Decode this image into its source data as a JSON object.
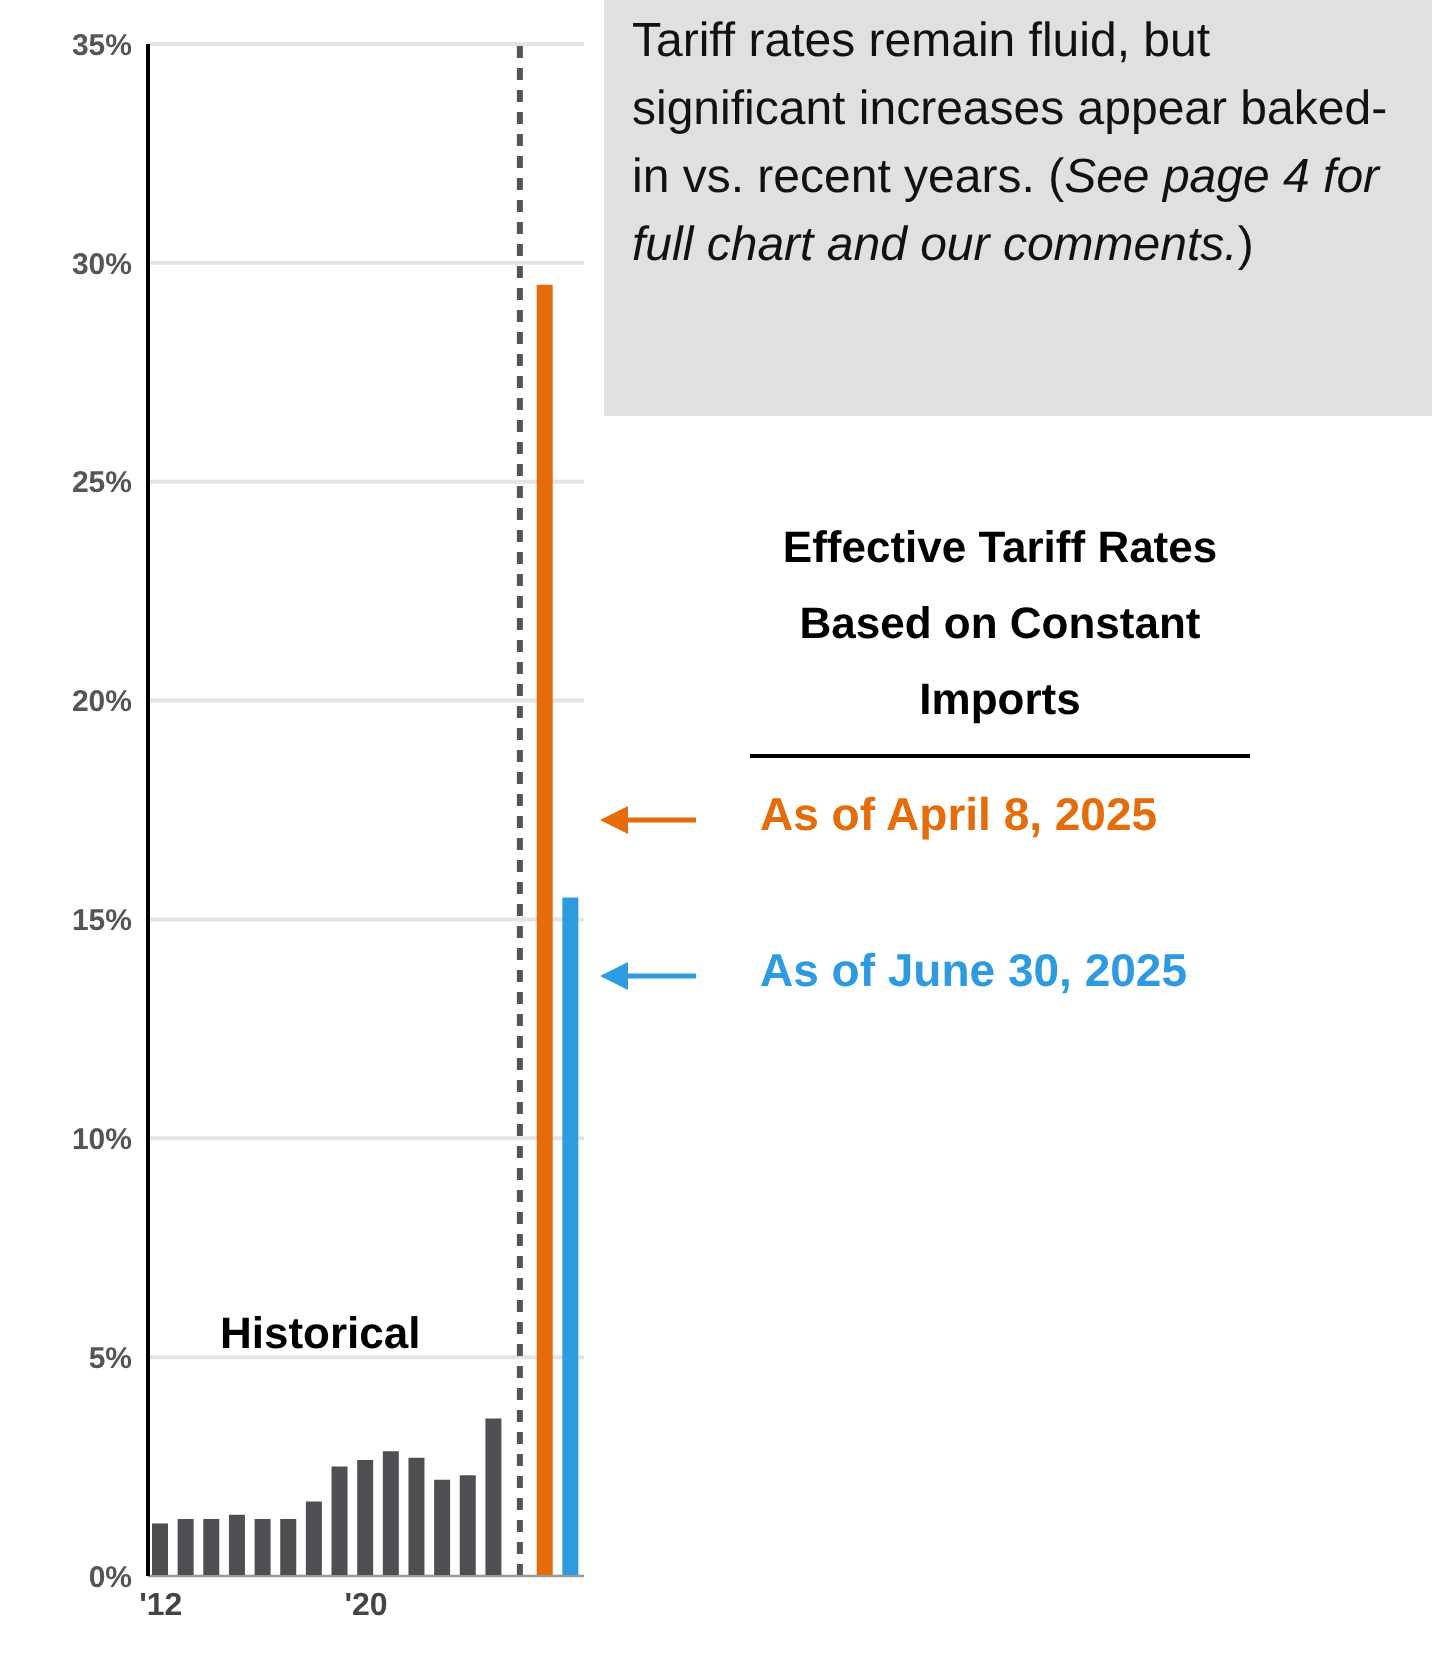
{
  "chart_data": {
    "type": "bar",
    "categories": [
      "'12",
      null,
      null,
      null,
      null,
      null,
      null,
      null,
      "'20",
      null,
      null,
      null,
      null,
      null,
      null,
      null,
      null
    ],
    "series": [
      {
        "name": "Historical",
        "color": "#4d4f53",
        "values": [
          1.2,
          1.3,
          1.3,
          1.4,
          1.3,
          1.3,
          1.7,
          2.5,
          2.65,
          2.85,
          2.7,
          2.2,
          2.3,
          3.6,
          null,
          null,
          null
        ]
      },
      {
        "name": "As of April 8, 2025",
        "color": "#e46c0a",
        "values": [
          null,
          null,
          null,
          null,
          null,
          null,
          null,
          null,
          null,
          null,
          null,
          null,
          null,
          null,
          null,
          29.5,
          null
        ]
      },
      {
        "name": "As of June 30, 2025",
        "color": "#2e9be0",
        "values": [
          null,
          null,
          null,
          null,
          null,
          null,
          null,
          null,
          null,
          null,
          null,
          null,
          null,
          null,
          null,
          null,
          15.5
        ]
      }
    ],
    "ylim": [
      0,
      35
    ],
    "yticks": [
      {
        "value": 0,
        "label": "0%"
      },
      {
        "value": 5,
        "label": "5%"
      },
      {
        "value": 10,
        "label": "10%"
      },
      {
        "value": 15,
        "label": "15%"
      },
      {
        "value": 20,
        "label": "20%"
      },
      {
        "value": 25,
        "label": "25%"
      },
      {
        "value": 30,
        "label": "30%"
      },
      {
        "value": 35,
        "label": "35%"
      }
    ],
    "grid": "y",
    "legend": "right",
    "legend_title": "Effective Tariff Rates Based on Constant Imports",
    "annotations": [
      "Tariff rates remain fluid, but significant increases appear baked-in vs. recent years. (See page 4 for full chart and our comments.)"
    ]
  }
}
